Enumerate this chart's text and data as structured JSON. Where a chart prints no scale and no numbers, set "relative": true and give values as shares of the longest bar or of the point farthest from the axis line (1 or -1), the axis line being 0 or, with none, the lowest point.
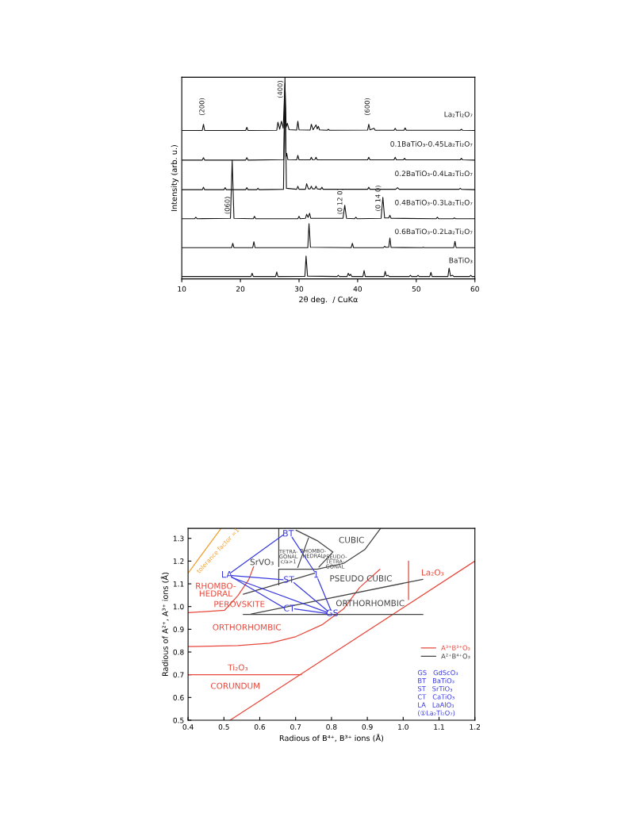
{
  "chart_data": [
    {
      "type": "line",
      "relative": true,
      "xlabel": "2θ deg.  / CuKα",
      "ylabel": "Intensity (arb. u.)",
      "xlim": [
        10,
        60
      ],
      "xticks": [
        10,
        20,
        30,
        40,
        50,
        60
      ],
      "grid": false,
      "legend": false,
      "series": [
        {
          "name": "La₂Ti₂O₇",
          "color": "#111111",
          "x": [
            10,
            13.5,
            13.7,
            13.9,
            20.9,
            21.1,
            21.3,
            26.2,
            26.4,
            26.7,
            27.0,
            27.3,
            27.6,
            27.8,
            28.0,
            28.3,
            29.6,
            29.8,
            30.0,
            31.9,
            32.1,
            32.4,
            32.9,
            33.1,
            33.3,
            33.5,
            34.8,
            35.0,
            35.2,
            41.7,
            41.9,
            42.1,
            42.8,
            43.0,
            46.2,
            46.4,
            46.6,
            47.9,
            48.1,
            48.3,
            57.5,
            57.7,
            57.9,
            60
          ],
          "values": [
            0.734,
            0.734,
            0.765,
            0.734,
            0.734,
            0.75,
            0.734,
            0.735,
            0.775,
            0.74,
            0.78,
            0.745,
            0.97,
            0.75,
            0.77,
            0.738,
            0.736,
            0.78,
            0.737,
            0.736,
            0.765,
            0.738,
            0.762,
            0.742,
            0.755,
            0.737,
            0.735,
            0.74,
            0.735,
            0.736,
            0.765,
            0.737,
            0.745,
            0.735,
            0.735,
            0.745,
            0.735,
            0.735,
            0.747,
            0.735,
            0.735,
            0.74,
            0.735,
            0.734
          ]
        },
        {
          "name": "0.1BaTiO₃-0.45La₂Ti₂O₇",
          "color": "#111111",
          "x": [
            10,
            13.5,
            13.7,
            13.9,
            20.9,
            21.1,
            21.3,
            27.4,
            27.6,
            27.75,
            27.9,
            28.1,
            29.6,
            29.8,
            30.0,
            31.9,
            32.1,
            32.3,
            32.7,
            32.9,
            33.1,
            41.7,
            41.9,
            42.1,
            46.2,
            46.4,
            46.6,
            47.8,
            48.0,
            48.2,
            57.5,
            57.7,
            57.9,
            60
          ],
          "values": [
            0.586,
            0.586,
            0.598,
            0.586,
            0.586,
            0.598,
            0.586,
            0.588,
            0.93,
            0.6,
            0.62,
            0.588,
            0.587,
            0.61,
            0.587,
            0.587,
            0.6,
            0.587,
            0.588,
            0.6,
            0.587,
            0.587,
            0.6,
            0.587,
            0.587,
            0.6,
            0.587,
            0.587,
            0.595,
            0.587,
            0.587,
            0.595,
            0.587,
            0.586
          ]
        },
        {
          "name": "0.2BaTiO₃-0.4La₂Ti₂O₇",
          "color": "#111111",
          "x": [
            10,
            13.5,
            13.7,
            13.9,
            17.2,
            17.4,
            17.6,
            20.9,
            21.1,
            21.3,
            22.8,
            23.0,
            23.2,
            27.35,
            27.6,
            27.85,
            29.6,
            29.8,
            30.0,
            31.1,
            31.3,
            31.6,
            31.9,
            32.1,
            32.3,
            32.7,
            32.9,
            33.1,
            33.7,
            33.9,
            34.1,
            41.7,
            41.9,
            42.1,
            46.5,
            46.8,
            47.1,
            57.3,
            57.5,
            57.7,
            60
          ],
          "values": [
            0.438,
            0.438,
            0.45,
            0.438,
            0.438,
            0.448,
            0.438,
            0.438,
            0.448,
            0.438,
            0.438,
            0.445,
            0.438,
            0.44,
            1.0,
            0.445,
            0.44,
            0.455,
            0.44,
            0.44,
            0.468,
            0.442,
            0.442,
            0.455,
            0.442,
            0.442,
            0.455,
            0.442,
            0.44,
            0.45,
            0.44,
            0.44,
            0.45,
            0.44,
            0.44,
            0.448,
            0.44,
            0.44,
            0.445,
            0.44,
            0.438
          ]
        },
        {
          "name": "0.4BaTiO₃-0.3La₂Ti₂O₇",
          "color": "#111111",
          "x": [
            10,
            12.2,
            12.4,
            12.6,
            18.3,
            18.6,
            18.9,
            22.2,
            22.4,
            22.6,
            29.8,
            30.0,
            30.2,
            31.1,
            31.3,
            31.55,
            31.8,
            32.0,
            37.5,
            37.8,
            38.1,
            39.5,
            39.7,
            39.9,
            44.0,
            44.3,
            44.6,
            45.3,
            45.5,
            45.7,
            53.4,
            53.6,
            53.8,
            56.3,
            56.5,
            56.7,
            60
          ],
          "values": [
            0.293,
            0.293,
            0.3,
            0.293,
            0.295,
            0.585,
            0.295,
            0.293,
            0.305,
            0.293,
            0.293,
            0.305,
            0.293,
            0.295,
            0.315,
            0.3,
            0.32,
            0.295,
            0.295,
            0.36,
            0.295,
            0.293,
            0.3,
            0.293,
            0.295,
            0.4,
            0.297,
            0.297,
            0.31,
            0.295,
            0.293,
            0.3,
            0.293,
            0.293,
            0.297,
            0.293,
            0.293
          ]
        },
        {
          "name": "0.6BaTiO₃-0.2La₂Ti₂O₇",
          "color": "#111111",
          "x": [
            10,
            18.5,
            18.7,
            18.9,
            22.1,
            22.3,
            22.5,
            31.5,
            31.7,
            31.95,
            38.9,
            39.1,
            39.3,
            44.4,
            44.6,
            44.8,
            45.3,
            45.5,
            45.7,
            51.0,
            51.2,
            51.4,
            56.4,
            56.6,
            56.8,
            60
          ],
          "values": [
            0.148,
            0.148,
            0.17,
            0.148,
            0.148,
            0.178,
            0.148,
            0.148,
            0.268,
            0.15,
            0.148,
            0.17,
            0.148,
            0.148,
            0.155,
            0.15,
            0.15,
            0.196,
            0.149,
            0.148,
            0.15,
            0.148,
            0.148,
            0.18,
            0.148,
            0.148
          ]
        },
        {
          "name": "BaTiO₃",
          "color": "#111111",
          "x": [
            10,
            21.8,
            22.0,
            22.2,
            26.0,
            26.2,
            26.4,
            31.0,
            31.2,
            31.45,
            36.5,
            36.7,
            36.9,
            38.2,
            38.4,
            38.6,
            38.8,
            39.0,
            40.9,
            41.1,
            41.3,
            44.5,
            44.7,
            44.9,
            45.2,
            45.4,
            48.8,
            49.0,
            49.2,
            50.1,
            50.3,
            50.5,
            52.3,
            52.5,
            52.7,
            55.4,
            55.6,
            55.85,
            56.2,
            56.4,
            59.1,
            59.3,
            59.5,
            60
          ],
          "values": [
            0.004,
            0.004,
            0.02,
            0.004,
            0.004,
            0.027,
            0.004,
            0.005,
            0.106,
            0.006,
            0.004,
            0.01,
            0.004,
            0.004,
            0.02,
            0.008,
            0.015,
            0.004,
            0.004,
            0.034,
            0.004,
            0.004,
            0.03,
            0.006,
            0.01,
            0.004,
            0.004,
            0.01,
            0.004,
            0.004,
            0.01,
            0.004,
            0.004,
            0.025,
            0.004,
            0.004,
            0.046,
            0.006,
            0.01,
            0.004,
            0.004,
            0.01,
            0.004,
            0.004
          ]
        }
      ],
      "annotations": [
        {
          "text": "(200)",
          "x": 13.7,
          "y": 0.765
        },
        {
          "text": "(400)",
          "x": 27.6,
          "y": 0.94
        },
        {
          "text": "(600)",
          "x": 41.9,
          "y": 0.765
        },
        {
          "text": "(060)",
          "x": 18.6,
          "y": 0.36
        },
        {
          "text": "(0 12 0)",
          "x": 37.8,
          "y": 0.38
        },
        {
          "text": "(0 14 0)",
          "x": 44.3,
          "y": 0.395
        }
      ]
    },
    {
      "type": "line",
      "xlabel": "Radious of B⁴⁺, B³⁺ ions (Å)",
      "ylabel": "Radious of A²⁺, A³⁺ ions (Å)",
      "xlim": [
        0.4,
        1.2
      ],
      "xticks": [
        0.4,
        0.5,
        0.6,
        0.7,
        0.8,
        0.9,
        {
          "value": 1.0,
          "label": "1.0"
        },
        1.1,
        1.2
      ],
      "ylim": [
        0.5,
        1.344
      ],
      "yticks": [
        0.5,
        0.6,
        0.7,
        0.8,
        0.9,
        {
          "value": 1.0,
          "label": "1.0"
        },
        1.1,
        1.2,
        1.3
      ],
      "grid": false,
      "legend": "bottom right",
      "series": [
        {
          "name": "A³⁺B³⁺O₃",
          "color": "#e8483c",
          "x": [
            0.517,
            1.2
          ],
          "values": [
            0.5,
            1.2
          ]
        },
        {
          "color": "#e8483c",
          "x": [
            0.4,
            0.539,
            0.628,
            0.701,
            0.775,
            0.834,
            0.878,
            0.935
          ],
          "values": [
            0.824,
            0.828,
            0.839,
            0.868,
            0.921,
            0.99,
            1.083,
            1.164
          ]
        },
        {
          "color": "#e8483c",
          "x": [
            0.4,
            0.716
          ],
          "values": [
            0.7,
            0.7
          ]
        },
        {
          "color": "#e8483c",
          "x": [
            0.4,
            0.502,
            0.539,
            0.569,
            0.583
          ],
          "values": [
            0.973,
            0.984,
            1.048,
            1.118,
            1.176
          ]
        },
        {
          "color": "#e8483c",
          "x": [
            1.015,
            1.015
          ],
          "values": [
            1.03,
            1.2
          ]
        },
        {
          "name": "A²⁺B⁴⁺O₃",
          "color": "#444444",
          "x": [
            0.554,
            0.753
          ],
          "values": [
            1.054,
            1.147
          ]
        },
        {
          "color": "#444444",
          "x": [
            0.576,
            1.055
          ],
          "values": [
            0.967,
            1.12
          ]
        },
        {
          "color": "#444444",
          "x": [
            0.554,
            1.055
          ],
          "values": [
            0.965,
            0.965
          ]
        },
        {
          "color": "#444444",
          "x": [
            0.653,
            0.653,
            0.76,
            0.834,
            0.893,
            0.937
          ],
          "values": [
            1.095,
            1.164,
            1.164,
            1.19,
            1.251,
            1.344
          ]
        },
        {
          "color": "#444444",
          "x": [
            0.653,
            0.653
          ],
          "values": [
            1.176,
            1.344
          ]
        },
        {
          "color": "#444444",
          "x": [
            0.701,
            0.76,
            0.804,
            0.765
          ],
          "values": [
            1.336,
            1.29,
            1.24,
            1.174
          ]
        },
        {
          "color": "#444444",
          "x": [
            0.736,
            0.706
          ],
          "values": [
            1.302,
            1.172
          ]
        },
        {
          "color": "#f0a030",
          "x": [
            0.4,
            0.492
          ],
          "values": [
            1.147,
            1.344
          ]
        },
        {
          "color": "#3a3ae0",
          "x": [
            0.52,
            0.665
          ],
          "values": [
            1.15,
            1.315
          ]
        },
        {
          "color": "#3a3ae0",
          "x": [
            0.522,
            0.665
          ],
          "values": [
            1.136,
            1.118
          ]
        },
        {
          "color": "#3a3ae0",
          "x": [
            0.522,
            0.667
          ],
          "values": [
            1.13,
            0.995
          ]
        },
        {
          "color": "#3a3ae0",
          "x": [
            0.522,
            0.787
          ],
          "values": [
            1.128,
            0.975
          ]
        },
        {
          "color": "#3a3ae0",
          "x": [
            0.695,
            0.79
          ],
          "values": [
            1.105,
            0.98
          ]
        },
        {
          "color": "#3a3ae0",
          "x": [
            0.69,
            0.752
          ],
          "values": [
            1.305,
            1.155
          ]
        },
        {
          "color": "#3a3ae0",
          "x": [
            0.762,
            0.798
          ],
          "values": [
            1.122,
            0.985
          ]
        },
        {
          "color": "#3a3ae0",
          "x": [
            0.697,
            0.787
          ],
          "values": [
            0.99,
            0.97
          ]
        }
      ],
      "annotations": [
        "tolerance factor =1",
        "RHOMBO-\nHEDRAL",
        "PEROVSKITE",
        "ORTHORHOMBIC",
        "Ti₂O₃",
        "CORUNDUM",
        "La₂O₃",
        "CUBIC",
        "SrVO₃",
        "PSEUDO CUBIC",
        "ORTHORHOMBIC",
        "TETRA-\nGONAL\nc/a>1",
        "RHOMBO-\nHEDRAL",
        "PSEUDO-\nTETRA-\nGONAL",
        "BT",
        "LA",
        "ST",
        "CT",
        "GS",
        "1",
        "GS   GdScO₃",
        "BT   BaTiO₃",
        "ST   SrTiO₃",
        "CT   CaTiO₃",
        "LA   LaAlO₃",
        "(①La₂Ti₂O₇)"
      ]
    }
  ]
}
